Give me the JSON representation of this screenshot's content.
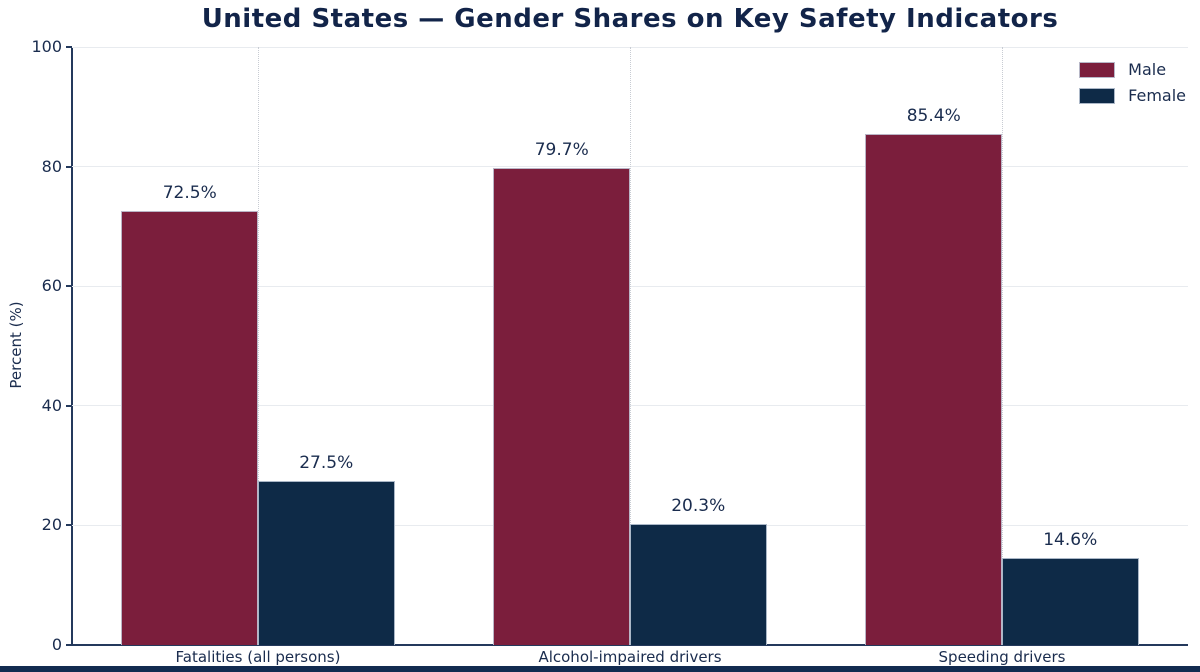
{
  "chart_data": {
    "type": "bar",
    "title": "United States — Gender Shares on Key Safety Indicators",
    "ylabel": "Percent (%)",
    "xlabel": "",
    "categories": [
      "Fatalities (all persons)",
      "Alcohol-impaired drivers",
      "Speeding drivers"
    ],
    "series": [
      {
        "name": "Male",
        "color": "#7B1E3C",
        "values": [
          72.5,
          79.7,
          85.4
        ],
        "value_labels": [
          "72.5%",
          "79.7%",
          "85.4%"
        ]
      },
      {
        "name": "Female",
        "color": "#0E2A47",
        "values": [
          27.5,
          20.3,
          14.6
        ],
        "value_labels": [
          "27.5%",
          "20.3%",
          "14.6%"
        ]
      }
    ],
    "ylim": [
      0,
      100
    ],
    "yticks": [
      0,
      20,
      40,
      60,
      80,
      100
    ],
    "ytick_labels": [
      "0",
      "20",
      "40",
      "60",
      "80",
      "100"
    ],
    "grid": true,
    "legend_position": "upper right"
  },
  "style": {
    "title_color": "#122449",
    "axis_text_color": "#1A2C4E",
    "spine_color": "#24395C",
    "hgrid_color": "#E8EBEF",
    "vgrid_color": "#C8CCD3",
    "footer_bar_color": "#122B50",
    "background": "#FFFFFF"
  }
}
